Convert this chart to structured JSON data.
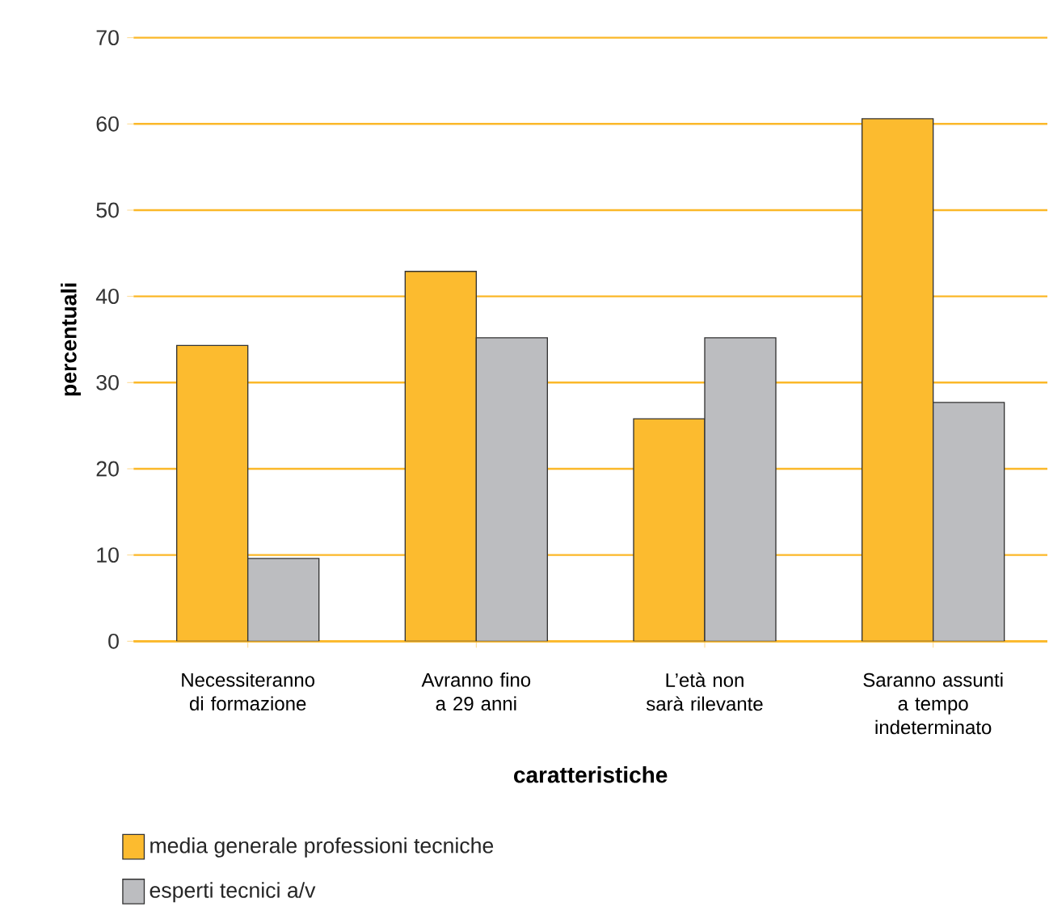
{
  "chart_data": {
    "type": "bar",
    "xlabel": "caratteristiche",
    "ylabel": "percentuali",
    "categories": [
      "Necessiteranno di formazione",
      "Avranno fino a 29 anni",
      "L’età non sarà rilevante",
      "Saranno assunti a tempo indeterminato"
    ],
    "series": [
      {
        "name": "media generale professioni tecniche",
        "color": "#fcbb2f",
        "values": [
          34.3,
          42.9,
          25.8,
          60.6
        ]
      },
      {
        "name": "esperti tecnici a/v",
        "color": "#bcbdc0",
        "values": [
          9.6,
          35.2,
          35.2,
          27.7
        ]
      }
    ],
    "ylim": [
      0,
      70
    ],
    "yticks": [
      0,
      10,
      20,
      30,
      40,
      50,
      60,
      70
    ],
    "grid": "y",
    "legend": "bottom left"
  }
}
